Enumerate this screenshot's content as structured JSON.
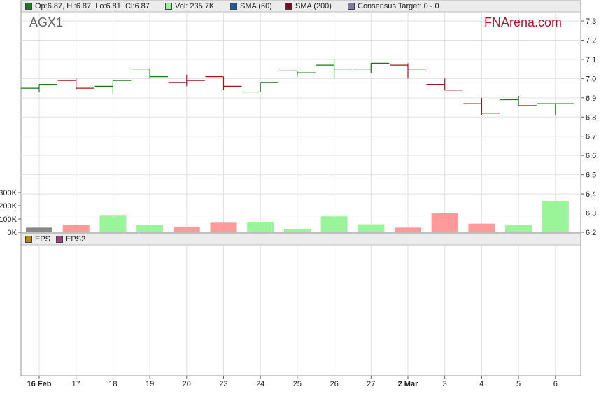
{
  "header": {
    "ohlc": "Op:6.87, Hi:6.87, Lo:6.81, Cl:6.87",
    "vol": "Vol: 235.7K",
    "sma60": "SMA (60)",
    "sma200": "SMA (200)",
    "consensus": "Consensus Target: 0 - 0"
  },
  "ticker": "AGX1",
  "brand": "FNArena.com",
  "eps_legend": {
    "eps": "EPS",
    "eps2": "EPS2"
  },
  "colors": {
    "up": "#1a7a1a",
    "down": "#a01818",
    "vol_up": "#9af59a",
    "vol_down": "#ff9a9a",
    "vol_neutral": "#888888",
    "sma60": "#1f5fa0",
    "sma200": "#7a1020",
    "consensus": "#7a7aa0",
    "eps": "#b8860b",
    "eps2": "#a04080",
    "brand": "#c8102e"
  },
  "chart_data": {
    "type": "ohlc",
    "x": [
      "16 Feb",
      "17",
      "18",
      "19",
      "20",
      "23",
      "24",
      "25",
      "26",
      "27",
      "2 Mar",
      "3",
      "4",
      "5",
      "6"
    ],
    "bold_ticks": [
      "16 Feb",
      "2 Mar"
    ],
    "y_ticks": [
      "7.3",
      "7.2",
      "7.1",
      "7.0",
      "6.9",
      "6.8",
      "6.7",
      "6.6",
      "6.5",
      "6.4",
      "6.3",
      "6.2"
    ],
    "ylim": [
      6.2,
      7.35
    ],
    "ohlc": [
      {
        "o": 6.95,
        "h": 6.97,
        "l": 6.93,
        "c": 6.97,
        "dir": "up"
      },
      {
        "o": 6.99,
        "h": 7.0,
        "l": 6.94,
        "c": 6.95,
        "dir": "down"
      },
      {
        "o": 6.96,
        "h": 6.99,
        "l": 6.92,
        "c": 6.99,
        "dir": "up"
      },
      {
        "o": 7.05,
        "h": 7.05,
        "l": 7.0,
        "c": 7.01,
        "dir": "up"
      },
      {
        "o": 6.98,
        "h": 7.02,
        "l": 6.96,
        "c": 6.99,
        "dir": "down"
      },
      {
        "o": 7.01,
        "h": 7.01,
        "l": 6.94,
        "c": 6.96,
        "dir": "down"
      },
      {
        "o": 6.93,
        "h": 6.98,
        "l": 6.93,
        "c": 6.98,
        "dir": "up"
      },
      {
        "o": 7.04,
        "h": 7.04,
        "l": 7.01,
        "c": 7.03,
        "dir": "up"
      },
      {
        "o": 7.07,
        "h": 7.1,
        "l": 7.0,
        "c": 7.05,
        "dir": "up"
      },
      {
        "o": 7.05,
        "h": 7.08,
        "l": 7.03,
        "c": 7.08,
        "dir": "up"
      },
      {
        "o": 7.07,
        "h": 7.08,
        "l": 7.0,
        "c": 7.05,
        "dir": "down"
      },
      {
        "o": 6.97,
        "h": 7.0,
        "l": 6.94,
        "c": 6.94,
        "dir": "down"
      },
      {
        "o": 6.87,
        "h": 6.9,
        "l": 6.81,
        "c": 6.82,
        "dir": "down"
      },
      {
        "o": 6.89,
        "h": 6.91,
        "l": 6.86,
        "c": 6.86,
        "dir": "up"
      },
      {
        "o": 6.87,
        "h": 6.87,
        "l": 6.81,
        "c": 6.87,
        "dir": "up"
      }
    ],
    "volume_ticks": [
      "300K",
      "200K",
      "100K",
      "0K"
    ],
    "volume_max": 300000,
    "volume": [
      {
        "v": 35000,
        "dir": "neutral"
      },
      {
        "v": 55000,
        "dir": "down"
      },
      {
        "v": 125000,
        "dir": "up"
      },
      {
        "v": 55000,
        "dir": "up"
      },
      {
        "v": 40000,
        "dir": "down"
      },
      {
        "v": 72000,
        "dir": "down"
      },
      {
        "v": 78000,
        "dir": "up"
      },
      {
        "v": 22000,
        "dir": "up"
      },
      {
        "v": 120000,
        "dir": "up"
      },
      {
        "v": 60000,
        "dir": "up"
      },
      {
        "v": 35000,
        "dir": "down"
      },
      {
        "v": 145000,
        "dir": "down"
      },
      {
        "v": 65000,
        "dir": "down"
      },
      {
        "v": 55000,
        "dir": "up"
      },
      {
        "v": 235700,
        "dir": "up"
      }
    ]
  }
}
